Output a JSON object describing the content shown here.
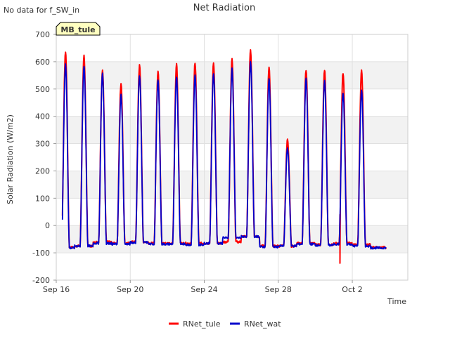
{
  "chart_data": {
    "type": "line",
    "title": "Net Radiation",
    "note": "No data for f_SW_in",
    "station_badge": "MB_tule",
    "xlabel": "Time",
    "ylabel": "Solar Radiation (W/m2)",
    "ylim": [
      -200,
      700
    ],
    "yticks": [
      -200,
      -100,
      0,
      100,
      200,
      300,
      400,
      500,
      600,
      700
    ],
    "xlim": [
      "2024-09-16",
      "2024-10-05"
    ],
    "xticks": [
      {
        "date": "2024-09-16",
        "label": "Sep 16"
      },
      {
        "date": "2024-09-20",
        "label": "Sep 20"
      },
      {
        "date": "2024-09-24",
        "label": "Sep 24"
      },
      {
        "date": "2024-09-28",
        "label": "Sep 28"
      },
      {
        "date": "2024-10-02",
        "label": "Oct 2"
      }
    ],
    "grid": true,
    "legend_position": "bottom-center",
    "series": [
      {
        "name": "RNet_tule",
        "color": "#ff0000",
        "daily_night": [
          -80,
          -75,
          -60,
          -65,
          -60,
          -65,
          -65,
          -65,
          -65,
          -60,
          -40,
          -75,
          -75,
          -65,
          -70,
          -65,
          -70,
          -80,
          -80
        ],
        "daily_peak": [
          638,
          622,
          568,
          520,
          585,
          565,
          590,
          595,
          592,
          608,
          640,
          580,
          318,
          572,
          572,
          560,
          568
        ],
        "peak_dates": [
          "2024-09-16",
          "2024-09-17",
          "2024-09-18",
          "2024-09-19",
          "2024-09-20",
          "2024-09-21",
          "2024-09-22",
          "2024-09-23",
          "2024-09-24",
          "2024-09-25",
          "2024-09-26",
          "2024-09-27",
          "2024-09-28",
          "2024-09-29",
          "2024-09-30",
          "2024-10-01",
          "2024-10-02"
        ],
        "min_value": -138
      },
      {
        "name": "RNet_wat",
        "color": "#0000cc",
        "daily_night": [
          -82,
          -75,
          -65,
          -68,
          -62,
          -68,
          -68,
          -70,
          -65,
          -45,
          -40,
          -78,
          -75,
          -68,
          -72,
          -68,
          -75,
          -82,
          -82
        ],
        "daily_peak": [
          592,
          582,
          555,
          478,
          552,
          535,
          548,
          548,
          558,
          572,
          600,
          538,
          285,
          535,
          530,
          488,
          492
        ],
        "peak_dates": [
          "2024-09-16",
          "2024-09-17",
          "2024-09-18",
          "2024-09-19",
          "2024-09-20",
          "2024-09-21",
          "2024-09-22",
          "2024-09-23",
          "2024-09-24",
          "2024-09-25",
          "2024-09-26",
          "2024-09-27",
          "2024-09-28",
          "2024-09-29",
          "2024-09-30",
          "2024-10-01",
          "2024-10-02"
        ]
      }
    ]
  }
}
